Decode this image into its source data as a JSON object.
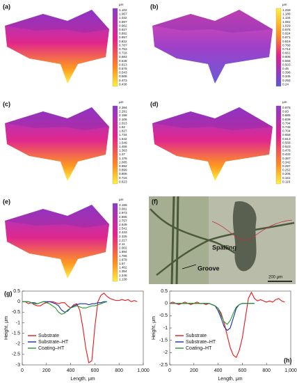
{
  "panels": [
    {
      "label": "(a)",
      "unit": "µm",
      "colorbar": [
        "1.102",
        "1.067",
        "1.032",
        "0.997",
        "0.962",
        "0.927",
        "0.892",
        "0.857",
        "0.822",
        "0.787",
        "0.753",
        "0.718",
        "0.683",
        "0.648",
        "0.613",
        "0.578",
        "0.543",
        "0.508",
        "0.473",
        "0.438"
      ]
    },
    {
      "label": "(b)",
      "unit": "µm",
      "colorbar": [
        "1.239",
        "1.186",
        "1.134",
        "1.081",
        "1.029",
        "0.976",
        "0.924",
        "0.871",
        "0.819",
        "0.766",
        "0.714",
        "0.661",
        "0.608",
        "0.556",
        "0.503",
        "0.45",
        "0.398",
        "0.345",
        "0.293",
        "0.24"
      ]
    },
    {
      "label": "(c)",
      "unit": "µm",
      "colorbar": [
        "2.384",
        "2.291",
        "2.198",
        "2.106",
        "2.013",
        "1.92",
        "1.827",
        "1.734",
        "1.642",
        "1.549",
        "1.456",
        "1.363",
        "1.27",
        "1.178",
        "1.085",
        "0.992",
        "0.899",
        "0.806",
        "0.716",
        "0.623"
      ]
    },
    {
      "label": "(d)",
      "unit": "µm",
      "colorbar": [
        "0.975",
        "0.93",
        "0.885",
        "0.839",
        "0.794",
        "0.749",
        "0.704",
        "0.659",
        "0.613",
        "0.568",
        "0.523",
        "0.478",
        "0.433",
        "0.387",
        "0.342",
        "0.297",
        "0.252",
        "0.206",
        "0.161",
        "0.116"
      ]
    },
    {
      "label": "(e)",
      "unit": "µm",
      "colorbar": [
        "3.189",
        "3.081",
        "2.973",
        "2.865",
        "2.757",
        "2.649",
        "2.541",
        "2.433",
        "2.325",
        "2.217",
        "2.11",
        "2.002",
        "1.894",
        "1.786",
        "1.678",
        "1.57",
        "1.462",
        "1.354",
        "1.246",
        "1.138"
      ]
    },
    {
      "label": "(f)",
      "annotations": [
        "Spalling",
        "Groove",
        "200 μm"
      ]
    }
  ],
  "chart_data": [
    {
      "type": "line",
      "panel_label": "(g)",
      "xlabel": "Length, μm",
      "ylabel": "Height, μm",
      "legend": "lower left",
      "x": [
        0,
        25,
        50,
        75,
        100,
        125,
        150,
        175,
        200,
        225,
        250,
        275,
        300,
        325,
        350,
        375,
        400,
        425,
        450,
        475,
        500,
        525,
        550,
        575,
        600,
        625,
        650,
        675,
        700,
        725,
        750,
        775,
        800,
        825,
        850,
        875,
        900,
        925,
        950
      ],
      "series": [
        {
          "name": "Substrate",
          "color": "#e8141b",
          "values": [
            0,
            0,
            -0.1,
            -0.05,
            -0.15,
            -0.2,
            -0.2,
            -0.1,
            -0.05,
            0,
            0,
            -0.05,
            -0.1,
            -0.05,
            -0.05,
            -0.2,
            -0.3,
            -0.15,
            -0.1,
            -0.4,
            -1.2,
            -2.2,
            -2.9,
            -2.8,
            -1.2,
            0,
            0.3,
            0.4,
            0.25,
            0.15,
            0.1,
            0.05,
            0.05,
            0.1,
            0.05,
            0.1,
            0,
            0.05,
            0
          ]
        },
        {
          "name": "Substrate–HT",
          "color": "#1c2aa8",
          "values": [
            0,
            0,
            0,
            -0.05,
            -0.05,
            -0.1,
            -0.05,
            0,
            0,
            0,
            -0.05,
            -0.1,
            -0.2,
            -0.4,
            -0.5,
            -0.45,
            -0.3,
            -0.2,
            -0.15,
            -0.1,
            -0.1,
            -0.1,
            -0.15,
            -0.1,
            -0.1,
            -0.05,
            -0.05,
            0,
            0,
            null,
            null,
            null,
            null,
            null,
            null,
            null,
            null,
            null,
            null
          ]
        },
        {
          "name": "Coating–HT",
          "color": "#1e9a2a",
          "values": [
            0,
            0,
            0,
            -0.05,
            -0.1,
            -0.1,
            -0.05,
            0,
            -0.05,
            -0.1,
            -0.2,
            -0.3,
            -0.5,
            -0.6,
            -0.55,
            -0.4,
            -0.3,
            -0.25,
            -0.2,
            -0.25,
            -0.3,
            -0.3,
            -0.25,
            -0.2,
            -0.2,
            -0.15,
            -0.1,
            -0.05,
            0,
            null,
            null,
            null,
            null,
            null,
            null,
            null,
            null,
            null,
            null
          ]
        }
      ],
      "xlim": [
        0,
        1000
      ],
      "xticks": [
        0,
        200,
        400,
        600,
        800,
        {
          "value": 1000,
          "label": "1,000"
        }
      ],
      "ylim": [
        -3,
        0.5
      ],
      "yticks": [
        -3,
        -2.5,
        -2,
        -1.5,
        -1,
        -0.5,
        0,
        0.5
      ]
    },
    {
      "type": "line",
      "panel_label": "(h)",
      "xlabel": "Length, μm",
      "ylabel": "Height, μm",
      "legend": "lower left",
      "x": [
        0,
        25,
        50,
        75,
        100,
        125,
        150,
        175,
        200,
        225,
        250,
        275,
        300,
        325,
        350,
        375,
        400,
        425,
        450,
        475,
        500,
        525,
        550,
        575,
        600,
        625,
        650,
        675,
        700,
        725,
        750,
        775,
        800,
        825,
        850,
        875,
        900,
        925,
        950
      ],
      "series": [
        {
          "name": "Substrate",
          "color": "#e8141b",
          "values": [
            0,
            0.05,
            0,
            -0.05,
            0,
            0.05,
            0,
            -0.05,
            0,
            0.05,
            0,
            0,
            -0.05,
            0,
            -0.05,
            -0.1,
            -0.2,
            -0.4,
            -0.8,
            -1.3,
            -1.8,
            -2.1,
            -2.2,
            -1.9,
            -1.4,
            -0.6,
            0.2,
            0.45,
            0.2,
            0.1,
            0.15,
            0.1,
            0.05,
            0.1,
            0.05,
            0.15,
            0.2,
            0.1,
            0.05
          ]
        },
        {
          "name": "Substrate–HT",
          "color": "#1c2aa8",
          "values": [
            0,
            0,
            0,
            0,
            0,
            0,
            0,
            0,
            0,
            0,
            0,
            0,
            0,
            0,
            -0.05,
            -0.1,
            -0.3,
            -0.6,
            -0.95,
            -1.1,
            -1.0,
            -0.6,
            -0.2,
            -0.05,
            0,
            0,
            0,
            0,
            0,
            null,
            null,
            null,
            null,
            null,
            null,
            null,
            null,
            null,
            null
          ]
        },
        {
          "name": "Coating–HT",
          "color": "#1e9a2a",
          "values": [
            0,
            0,
            0,
            0,
            0,
            0,
            0,
            0,
            0,
            0,
            0,
            0,
            0,
            0,
            -0.05,
            -0.1,
            -0.2,
            -0.5,
            -0.75,
            -0.85,
            -0.7,
            -0.4,
            -0.15,
            -0.05,
            0,
            0,
            0,
            0,
            0,
            null,
            null,
            null,
            null,
            null,
            null,
            null,
            null,
            null,
            null
          ]
        }
      ],
      "xlim": [
        0,
        1000
      ],
      "xticks": [
        0,
        200,
        400,
        600,
        800,
        {
          "value": 1000,
          "label": "1,000"
        }
      ],
      "ylim": [
        -2.5,
        0.5
      ],
      "yticks": [
        -2.5,
        -2,
        -1.5,
        -1,
        -0.5,
        0,
        0.5
      ]
    }
  ]
}
